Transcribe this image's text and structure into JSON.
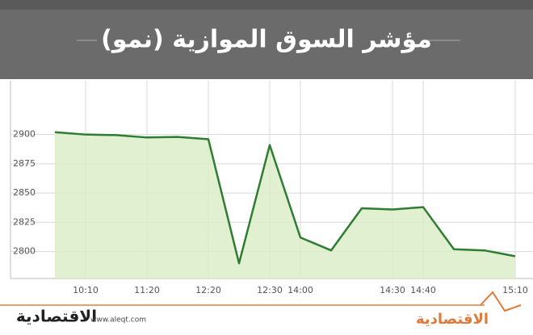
{
  "chart_data": {
    "type": "line",
    "title": "مؤشر السوق الموازية (نمو)",
    "categories": [
      null,
      "10:10",
      null,
      "11:20",
      null,
      "12:20",
      null,
      "12:30",
      "14:00",
      null,
      null,
      "14:30",
      "14:40",
      null,
      null,
      "15:10"
    ],
    "series": [
      {
        "color": "#2e7d32",
        "values": [
          2902,
          2900,
          2899.5,
          2897.5,
          2898,
          2896,
          2790,
          2891,
          2812,
          2801,
          2837,
          2836,
          2838,
          2802,
          2801,
          2796
        ]
      }
    ],
    "area_color": "#dcedc8",
    "ylim": [
      2777,
      2946
    ],
    "yticks": [
      2800,
      2825,
      2850,
      2875,
      2900
    ],
    "grid": true
  },
  "footer": {
    "logo_left": "الاقتصادية",
    "url": "www.aleqt.com",
    "logo_right": "الاقتصادية"
  }
}
